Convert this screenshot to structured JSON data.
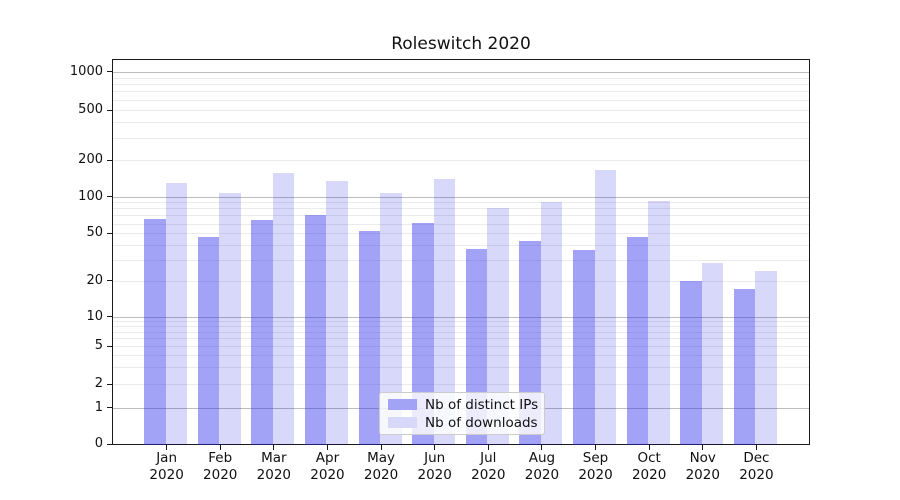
{
  "title": "Roleswitch 2020",
  "chart_data": {
    "type": "bar",
    "title": "Roleswitch 2020",
    "categories": [
      "Jan 2020",
      "Feb 2020",
      "Mar 2020",
      "Apr 2020",
      "May 2020",
      "Jun 2020",
      "Jul 2020",
      "Aug 2020",
      "Sep 2020",
      "Oct 2020",
      "Nov 2020",
      "Dec 2020"
    ],
    "series": [
      {
        "name": "Nb of distinct IPs",
        "color": "#a3a3f6",
        "fill": "#2828eb",
        "fill_opacity": 0.43,
        "values": [
          66,
          47,
          64,
          70,
          52,
          61,
          37,
          43,
          36,
          47,
          20,
          17
        ]
      },
      {
        "name": "Nb of downloads",
        "color": "#d8d8fa",
        "fill": "#0a0ae1",
        "fill_opacity": 0.16,
        "values": [
          130,
          107,
          155,
          135,
          106,
          140,
          80,
          90,
          165,
          92,
          28,
          24
        ]
      }
    ],
    "yscale": "symlog",
    "yticks": [
      0,
      1,
      2,
      5,
      10,
      20,
      50,
      100,
      200,
      500,
      1000
    ],
    "ylim": [
      0,
      1250
    ],
    "grid": true,
    "legend_position": "lower-center"
  },
  "colors": {
    "grid_major": "#bdbdbd",
    "grid_minor": "#ebebeb",
    "axis": "#1a1a1a",
    "legend_border": "#cccccc"
  }
}
